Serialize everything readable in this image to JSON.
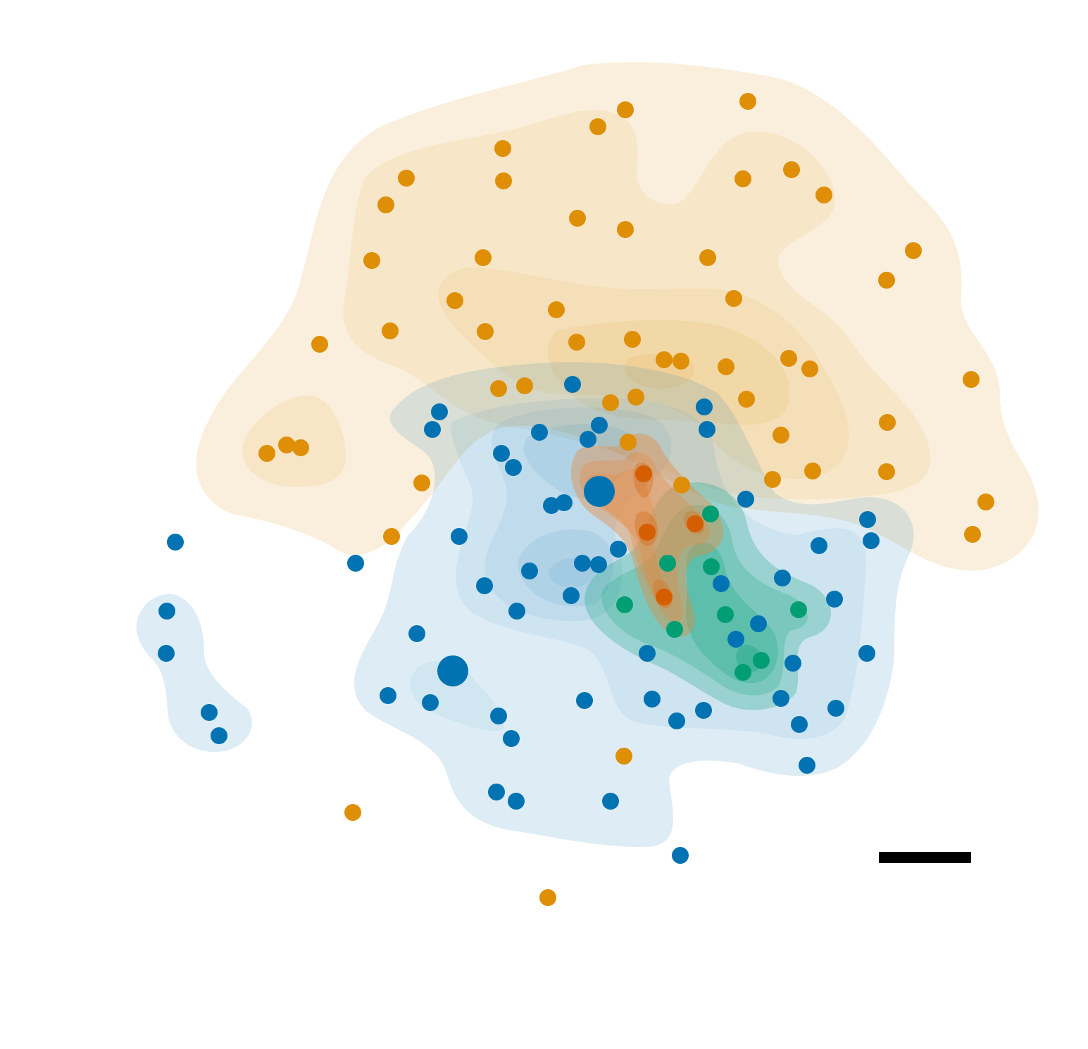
{
  "chart_data": {
    "type": "scatter",
    "title": "",
    "xlabel": "",
    "ylabel": "",
    "axes_visible": false,
    "grid": false,
    "legend": "none",
    "scale_bar": true,
    "density_contours": true,
    "series": [
      {
        "color": "#de8f05",
        "points": [
          [
            888,
            156
          ],
          [
            1062,
            144
          ],
          [
            849,
            180
          ],
          [
            714,
            211
          ],
          [
            577,
            253
          ],
          [
            715,
            257
          ],
          [
            1055,
            254
          ],
          [
            1124,
            241
          ],
          [
            1170,
            277
          ],
          [
            548,
            291
          ],
          [
            820,
            310
          ],
          [
            888,
            326
          ],
          [
            528,
            370
          ],
          [
            686,
            366
          ],
          [
            1005,
            366
          ],
          [
            1297,
            356
          ],
          [
            1259,
            398
          ],
          [
            646,
            427
          ],
          [
            790,
            440
          ],
          [
            1042,
            424
          ],
          [
            454,
            489
          ],
          [
            554,
            470
          ],
          [
            689,
            471
          ],
          [
            819,
            486
          ],
          [
            898,
            482
          ],
          [
            943,
            511
          ],
          [
            967,
            513
          ],
          [
            1031,
            521
          ],
          [
            1120,
            509
          ],
          [
            1150,
            524
          ],
          [
            1379,
            539
          ],
          [
            708,
            552
          ],
          [
            745,
            548
          ],
          [
            867,
            572
          ],
          [
            903,
            564
          ],
          [
            1060,
            567
          ],
          [
            1260,
            600
          ],
          [
            1109,
            618
          ],
          [
            379,
            644
          ],
          [
            407,
            632
          ],
          [
            427,
            636
          ],
          [
            892,
            628
          ],
          [
            1154,
            669
          ],
          [
            1259,
            670
          ],
          [
            599,
            686
          ],
          [
            968,
            689
          ],
          [
            1097,
            681
          ],
          [
            1400,
            713
          ],
          [
            556,
            762
          ],
          [
            1381,
            759
          ],
          [
            886,
            1074
          ],
          [
            501,
            1154
          ],
          [
            778,
            1275
          ]
        ]
      },
      {
        "color": "#0173b2",
        "points": [
          [
            813,
            546
          ],
          [
            624,
            585
          ],
          [
            1000,
            578
          ],
          [
            614,
            610
          ],
          [
            766,
            614
          ],
          [
            851,
            604
          ],
          [
            835,
            624
          ],
          [
            1004,
            610
          ],
          [
            712,
            644
          ],
          [
            729,
            664
          ],
          [
            1059,
            709
          ],
          [
            783,
            718
          ],
          [
            801,
            714
          ],
          [
            249,
            770
          ],
          [
            652,
            762
          ],
          [
            1232,
            738
          ],
          [
            1237,
            768
          ],
          [
            1163,
            775
          ],
          [
            878,
            780
          ],
          [
            505,
            800
          ],
          [
            827,
            800
          ],
          [
            850,
            802
          ],
          [
            752,
            811
          ],
          [
            688,
            832
          ],
          [
            811,
            846
          ],
          [
            1111,
            821
          ],
          [
            1024,
            829
          ],
          [
            734,
            868
          ],
          [
            1185,
            851
          ],
          [
            237,
            868
          ],
          [
            1077,
            886
          ],
          [
            592,
            900
          ],
          [
            1045,
            908
          ],
          [
            919,
            928
          ],
          [
            236,
            928
          ],
          [
            1231,
            928
          ],
          [
            1126,
            942
          ],
          [
            551,
            988
          ],
          [
            611,
            998
          ],
          [
            830,
            995
          ],
          [
            926,
            993
          ],
          [
            1109,
            992
          ],
          [
            297,
            1012
          ],
          [
            708,
            1017
          ],
          [
            999,
            1009
          ],
          [
            961,
            1024
          ],
          [
            1135,
            1029
          ],
          [
            1187,
            1006
          ],
          [
            311,
            1045
          ],
          [
            726,
            1049
          ],
          [
            1146,
            1087
          ],
          [
            705,
            1125
          ],
          [
            733,
            1138
          ],
          [
            867,
            1138
          ],
          [
            966,
            1215
          ]
        ],
        "large_points": [
          [
            851,
            698
          ],
          [
            643,
            953
          ]
        ]
      },
      {
        "color": "#029e73",
        "points": [
          [
            1009,
            730
          ],
          [
            948,
            800
          ],
          [
            1010,
            805
          ],
          [
            887,
            859
          ],
          [
            1134,
            866
          ],
          [
            1030,
            873
          ],
          [
            958,
            894
          ],
          [
            1081,
            938
          ],
          [
            1055,
            955
          ]
        ]
      },
      {
        "color": "#d55e00",
        "points": [
          [
            914,
            673
          ],
          [
            987,
            744
          ],
          [
            919,
            756
          ],
          [
            943,
            848
          ]
        ]
      }
    ]
  }
}
